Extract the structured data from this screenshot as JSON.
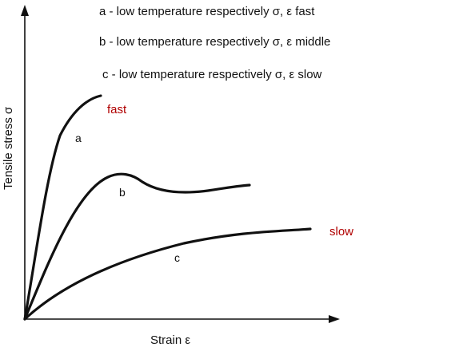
{
  "legend": {
    "a": "a - low temperature respectively σ, ε fast",
    "b": "b - low temperature respectively σ, ε middle",
    "c": "c - low temperature respectively σ, ε slow"
  },
  "axes": {
    "y_label": "Tensile stress σ",
    "x_label": "Strain ε"
  },
  "curves": {
    "a": {
      "label": "a"
    },
    "b": {
      "label": "b"
    },
    "c": {
      "label": "c"
    }
  },
  "speed_labels": {
    "fast": "fast",
    "slow": "slow"
  },
  "colors": {
    "speed_label": "#b00000",
    "ink": "#111111"
  }
}
